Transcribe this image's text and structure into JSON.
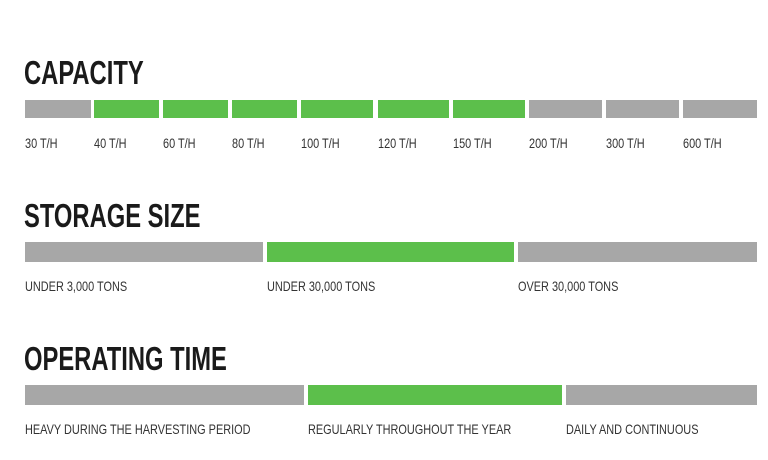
{
  "sections": [
    {
      "title": "CAPACITY",
      "segments": [
        {
          "label": "30 T/H",
          "active": false
        },
        {
          "label": "40 T/H",
          "active": true
        },
        {
          "label": "60 T/H",
          "active": true
        },
        {
          "label": "80 T/H",
          "active": true
        },
        {
          "label": "100 T/H",
          "active": true
        },
        {
          "label": "120 T/H",
          "active": true
        },
        {
          "label": "150 T/H",
          "active": true
        },
        {
          "label": "200 T/H",
          "active": false
        },
        {
          "label": "300 T/H",
          "active": false
        },
        {
          "label": "600 T/H",
          "active": false
        }
      ]
    },
    {
      "title": "STORAGE SIZE",
      "segments": [
        {
          "label": "UNDER 3,000 TONS",
          "active": false
        },
        {
          "label": "UNDER 30,000 TONS",
          "active": true
        },
        {
          "label": "OVER 30,000 TONS",
          "active": false
        }
      ]
    },
    {
      "title": "OPERATING TIME",
      "segments": [
        {
          "label": "HEAVY DURING THE HARVESTING PERIOD",
          "active": false
        },
        {
          "label": "REGULARLY THROUGHOUT THE YEAR",
          "active": true
        },
        {
          "label": "DAILY AND CONTINUOUS",
          "active": false
        }
      ]
    }
  ],
  "active_color": "#5cbf4b",
  "inactive_color": "#a7a7a7"
}
